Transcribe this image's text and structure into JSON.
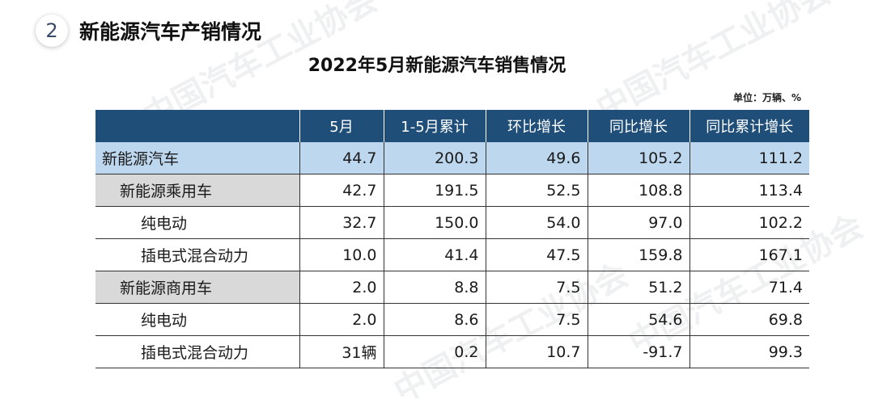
{
  "section": {
    "number": "2",
    "title": "新能源汽车产销情况"
  },
  "table_title": "2022年5月新能源汽车销售情况",
  "unit": "单位：万辆、%",
  "table": {
    "headers": [
      "",
      "5月",
      "1-5月累计",
      "环比增长",
      "同比增长",
      "同比累计增长"
    ],
    "rows": [
      {
        "level": 0,
        "cells": [
          "新能源汽车",
          "44.7",
          "200.3",
          "49.6",
          "105.2",
          "111.2"
        ]
      },
      {
        "level": 1,
        "cells": [
          "新能源乘用车",
          "42.7",
          "191.5",
          "52.5",
          "108.8",
          "113.4"
        ]
      },
      {
        "level": 2,
        "cells": [
          "纯电动",
          "32.7",
          "150.0",
          "54.0",
          "97.0",
          "102.2"
        ]
      },
      {
        "level": 2,
        "cells": [
          "插电式混合动力",
          "10.0",
          "41.4",
          "47.5",
          "159.8",
          "167.1"
        ]
      },
      {
        "level": 1,
        "cells": [
          "新能源商用车",
          "2.0",
          "8.8",
          "7.5",
          "51.2",
          "71.4"
        ]
      },
      {
        "level": 2,
        "cells": [
          "纯电动",
          "2.0",
          "8.6",
          "7.5",
          "54.6",
          "69.8"
        ]
      },
      {
        "level": 2,
        "cells": [
          "插电式混合动力",
          "31辆",
          "0.2",
          "10.7",
          "-91.7",
          "99.3"
        ]
      }
    ]
  },
  "watermark": {
    "text": "中国汽车工业协会"
  },
  "colors": {
    "header_bg": "#1f4e79",
    "total_row_bg": "#bdd7ee",
    "subtotal_bg": "#d9d9d9"
  }
}
